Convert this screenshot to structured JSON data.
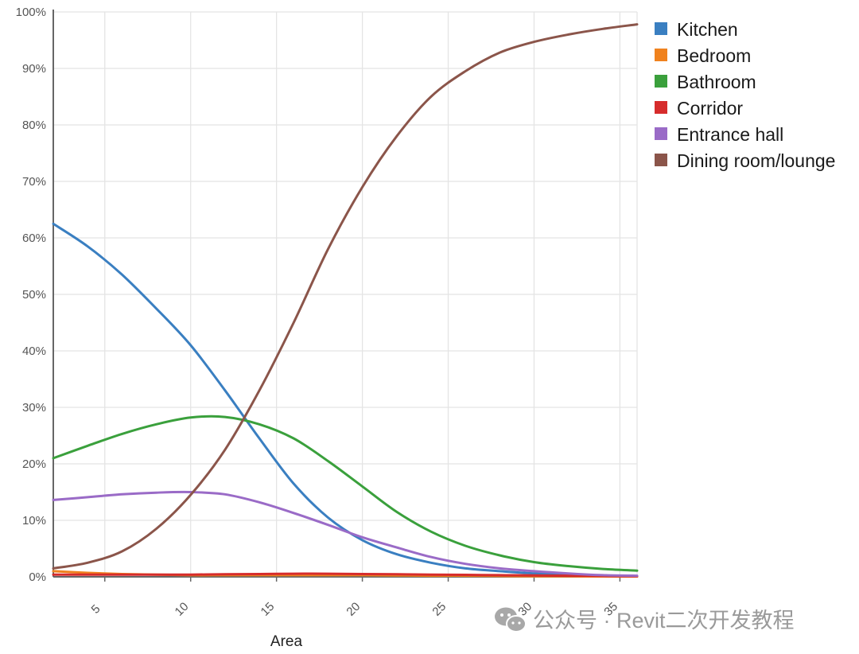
{
  "chart_data": {
    "type": "line",
    "xlabel": "Area",
    "ylabel": "",
    "xlim": [
      2,
      36
    ],
    "ylim": [
      0,
      100
    ],
    "x_ticks": [
      5,
      10,
      15,
      20,
      25,
      30,
      35
    ],
    "y_ticks": [
      0,
      10,
      20,
      30,
      40,
      50,
      60,
      70,
      80,
      90,
      100
    ],
    "y_tick_labels": [
      "0%",
      "10%",
      "20%",
      "30%",
      "40%",
      "50%",
      "60%",
      "70%",
      "80%",
      "90%",
      "100%"
    ],
    "grid": true,
    "legend_position": "right",
    "series": [
      {
        "name": "Kitchen",
        "color": "#3a7fc1",
        "points": [
          [
            2,
            62.5
          ],
          [
            4,
            58.5
          ],
          [
            6,
            53.5
          ],
          [
            8,
            47.5
          ],
          [
            10,
            41
          ],
          [
            12,
            33
          ],
          [
            14,
            24.5
          ],
          [
            16,
            16.5
          ],
          [
            18,
            10.5
          ],
          [
            20,
            6.5
          ],
          [
            22,
            4
          ],
          [
            24,
            2.5
          ],
          [
            26,
            1.5
          ],
          [
            28,
            1
          ],
          [
            30,
            0.6
          ],
          [
            32,
            0.4
          ],
          [
            34,
            0.2
          ],
          [
            36,
            0.1
          ]
        ]
      },
      {
        "name": "Bedroom",
        "color": "#f0821e",
        "points": [
          [
            2,
            1
          ],
          [
            4,
            0.7
          ],
          [
            6,
            0.5
          ],
          [
            8,
            0.4
          ],
          [
            10,
            0.3
          ],
          [
            12,
            0.3
          ],
          [
            14,
            0.3
          ],
          [
            16,
            0.3
          ],
          [
            18,
            0.3
          ],
          [
            20,
            0.3
          ],
          [
            22,
            0.25
          ],
          [
            24,
            0.2
          ],
          [
            26,
            0.2
          ],
          [
            28,
            0.15
          ],
          [
            30,
            0.1
          ],
          [
            32,
            0.1
          ],
          [
            34,
            0.05
          ],
          [
            36,
            0.05
          ]
        ]
      },
      {
        "name": "Bathroom",
        "color": "#3aa03c",
        "points": [
          [
            2,
            21
          ],
          [
            4,
            23.2
          ],
          [
            6,
            25.3
          ],
          [
            8,
            27
          ],
          [
            10,
            28.2
          ],
          [
            12,
            28.3
          ],
          [
            14,
            27
          ],
          [
            16,
            24.5
          ],
          [
            18,
            20.5
          ],
          [
            20,
            16
          ],
          [
            22,
            11.5
          ],
          [
            24,
            8
          ],
          [
            26,
            5.5
          ],
          [
            28,
            3.8
          ],
          [
            30,
            2.6
          ],
          [
            32,
            1.9
          ],
          [
            34,
            1.4
          ],
          [
            36,
            1.1
          ]
        ]
      },
      {
        "name": "Corridor",
        "color": "#d62c2c",
        "points": [
          [
            2,
            0.4
          ],
          [
            4,
            0.4
          ],
          [
            6,
            0.4
          ],
          [
            8,
            0.4
          ],
          [
            10,
            0.4
          ],
          [
            12,
            0.45
          ],
          [
            14,
            0.5
          ],
          [
            16,
            0.55
          ],
          [
            18,
            0.55
          ],
          [
            20,
            0.5
          ],
          [
            22,
            0.45
          ],
          [
            24,
            0.4
          ],
          [
            26,
            0.35
          ],
          [
            28,
            0.3
          ],
          [
            30,
            0.25
          ],
          [
            32,
            0.2
          ],
          [
            34,
            0.15
          ],
          [
            36,
            0.1
          ]
        ]
      },
      {
        "name": "Entrance hall",
        "color": "#9a6bc7",
        "points": [
          [
            2,
            13.6
          ],
          [
            4,
            14.1
          ],
          [
            6,
            14.6
          ],
          [
            8,
            14.9
          ],
          [
            10,
            15
          ],
          [
            12,
            14.6
          ],
          [
            14,
            13.2
          ],
          [
            16,
            11.3
          ],
          [
            18,
            9.2
          ],
          [
            20,
            7
          ],
          [
            22,
            5.2
          ],
          [
            24,
            3.5
          ],
          [
            26,
            2.3
          ],
          [
            28,
            1.5
          ],
          [
            30,
            1
          ],
          [
            32,
            0.6
          ],
          [
            34,
            0.3
          ],
          [
            36,
            0.2
          ]
        ]
      },
      {
        "name": "Dining room/lounge",
        "color": "#8b554a",
        "points": [
          [
            2,
            1.5
          ],
          [
            4,
            2.5
          ],
          [
            6,
            4.5
          ],
          [
            8,
            8.5
          ],
          [
            10,
            14.5
          ],
          [
            12,
            22.5
          ],
          [
            14,
            33
          ],
          [
            16,
            45
          ],
          [
            18,
            58
          ],
          [
            20,
            69
          ],
          [
            22,
            78
          ],
          [
            24,
            85
          ],
          [
            26,
            89.5
          ],
          [
            28,
            92.8
          ],
          [
            30,
            94.7
          ],
          [
            32,
            96
          ],
          [
            34,
            97
          ],
          [
            36,
            97.8
          ]
        ]
      }
    ]
  },
  "watermark": {
    "text": "公众号 · Revit二次开发教程",
    "icon": "wechat-icon"
  }
}
